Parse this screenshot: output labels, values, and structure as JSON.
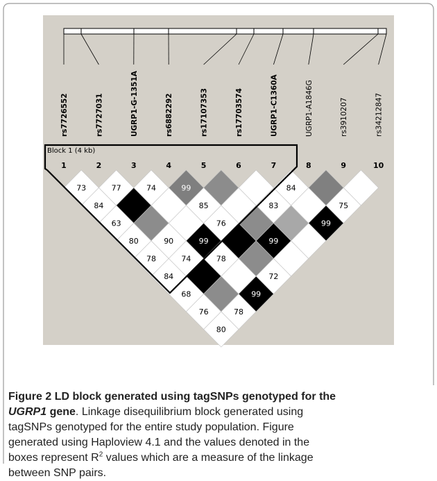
{
  "figure": {
    "markers": [
      {
        "name": "rs7726552",
        "bold": true
      },
      {
        "name": "rs7727031",
        "bold": true
      },
      {
        "name": "UGRP1-G-1351A",
        "bold": true
      },
      {
        "name": "rs6882292",
        "bold": true
      },
      {
        "name": "rs17107353",
        "bold": true
      },
      {
        "name": "rs17703574",
        "bold": true
      },
      {
        "name": "UGRP1-C1360A",
        "bold": true
      },
      {
        "name": "UGRP1-A1846G",
        "bold": false
      },
      {
        "name": "rs3910207",
        "bold": false
      },
      {
        "name": "rs34212847",
        "bold": false
      }
    ],
    "numbers": [
      "1",
      "2",
      "3",
      "4",
      "5",
      "6",
      "7",
      "8",
      "9",
      "10"
    ],
    "block_label": "Block 1 (4 kb)",
    "ld": {
      "rows": [
        [
          {
            "value": 73,
            "color": "#ffffff"
          },
          {
            "value": 77,
            "color": "#ffffff"
          },
          {
            "value": 74,
            "color": "#ffffff"
          },
          {
            "value": 99,
            "color": "#7f7f7f"
          },
          {
            "color": "#8c8c8c"
          },
          {
            "color": "#ffffff"
          },
          {
            "value": 84,
            "color": "#ffffff"
          },
          {
            "color": "#808080"
          },
          {
            "color": "#ffffff"
          }
        ],
        [
          {
            "value": 84,
            "color": "#ffffff"
          },
          {
            "color": "#000000"
          },
          {
            "color": "#ffffff"
          },
          {
            "value": 85,
            "color": "#ffffff"
          },
          {
            "color": "#ffffff"
          },
          {
            "value": 83,
            "color": "#ffffff"
          },
          {
            "color": "#ffffff"
          },
          {
            "value": 75,
            "color": "#ffffff"
          }
        ],
        [
          {
            "value": 63,
            "color": "#ffffff"
          },
          {
            "color": "#8c8c8c"
          },
          {
            "color": "#ffffff"
          },
          {
            "value": 76,
            "color": "#ffffff"
          },
          {
            "color": "#8c8c8c"
          },
          {
            "color": "#a8a8a8"
          },
          {
            "value": 99,
            "color": "#000000"
          }
        ],
        [
          {
            "value": 80,
            "color": "#ffffff"
          },
          {
            "value": 90,
            "color": "#ffffff"
          },
          {
            "value": 99,
            "color": "#000000"
          },
          {
            "color": "#000000"
          },
          {
            "value": 99,
            "color": "#000000"
          },
          {
            "color": "#ffffff"
          }
        ],
        [
          {
            "value": 78,
            "color": "#ffffff"
          },
          {
            "value": 74,
            "color": "#ffffff"
          },
          {
            "value": 78,
            "color": "#ffffff"
          },
          {
            "color": "#8c8c8c"
          },
          {
            "color": "#ffffff"
          }
        ],
        [
          {
            "value": 84,
            "color": "#ffffff"
          },
          {
            "color": "#000000"
          },
          {
            "color": "#ffffff"
          },
          {
            "value": 72,
            "color": "#ffffff"
          }
        ],
        [
          {
            "value": 68,
            "color": "#ffffff"
          },
          {
            "color": "#8c8c8c"
          },
          {
            "value": 99,
            "color": "#000000"
          }
        ],
        [
          {
            "value": 76,
            "color": "#ffffff"
          },
          {
            "value": 78,
            "color": "#ffffff"
          }
        ],
        [
          {
            "value": 80,
            "color": "#ffffff"
          }
        ]
      ]
    }
  },
  "caption": {
    "label": "Figure 2",
    "title": "LD block generated using tagSNPs genotyped for the",
    "gene": "UGRP1",
    "title_end": "gene",
    "line2_rest": ". Linkage disequilibrium block generated using",
    "lines": [
      "tagSNPs genotyped for the entire study population. Figure",
      "generated using Haploview 4.1 and the values denoted in the"
    ],
    "r_line": {
      "before": "boxes represent R",
      "sup": "2",
      "after": "values which are a measure of the linkage"
    },
    "last": "between SNP pairs."
  }
}
